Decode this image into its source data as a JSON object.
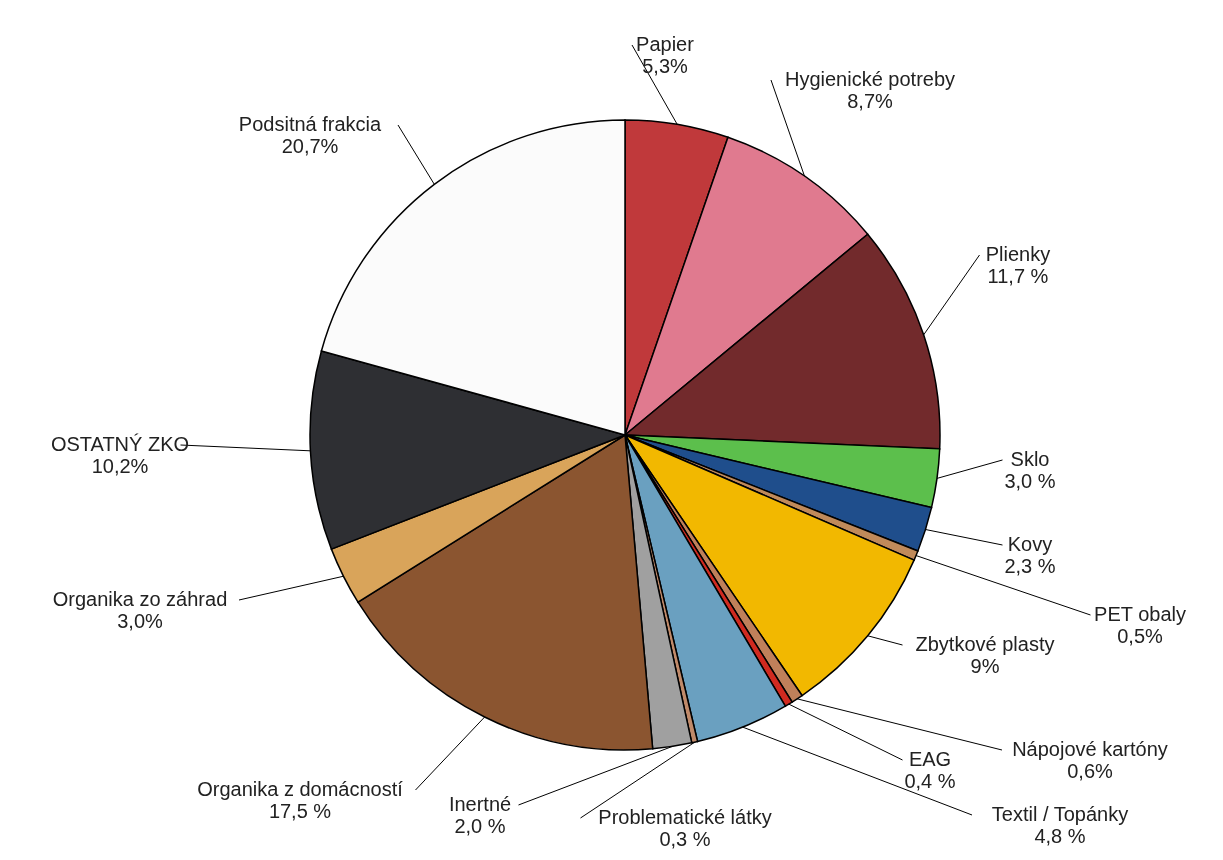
{
  "chart_data": {
    "type": "pie",
    "categories": [
      "Papier",
      "Hygienické potreby",
      "Plienky",
      "Sklo",
      "Kovy",
      "PET obaly",
      "Zbytkové plasty",
      "Nápojové kartóny",
      "EAG",
      "Textil / Topánky",
      "Problematické látky",
      "Inertné",
      "Organika z domácností",
      "Organika zo záhrad",
      "OSTATNÝ ZKO",
      "Podsitná frakcia"
    ],
    "values": [
      5.3,
      8.7,
      11.7,
      3.0,
      2.3,
      0.5,
      9,
      0.6,
      0.4,
      4.8,
      0.3,
      2.0,
      17.5,
      3.0,
      10.2,
      20.7
    ],
    "value_labels": [
      "5,3%",
      "8,7%",
      "11,7 %",
      "3,0 %",
      "2,3 %",
      "0,5%",
      "9%",
      "0,6%",
      "0,4 %",
      "4,8 %",
      "0,3 %",
      "2,0 %",
      "17,5 %",
      "3,0%",
      "10,2%",
      "20,7%"
    ],
    "colors": [
      "#c0393b",
      "#e07a8f",
      "#722a2c",
      "#5cbf4c",
      "#1f4e8c",
      "#c08a5a",
      "#f2b800",
      "#c0805a",
      "#d02a20",
      "#6aa0c0",
      "#c08a6a",
      "#a0a0a0",
      "#8b5530",
      "#d9a45a",
      "#2e2f33",
      "#fbfbfb"
    ]
  }
}
